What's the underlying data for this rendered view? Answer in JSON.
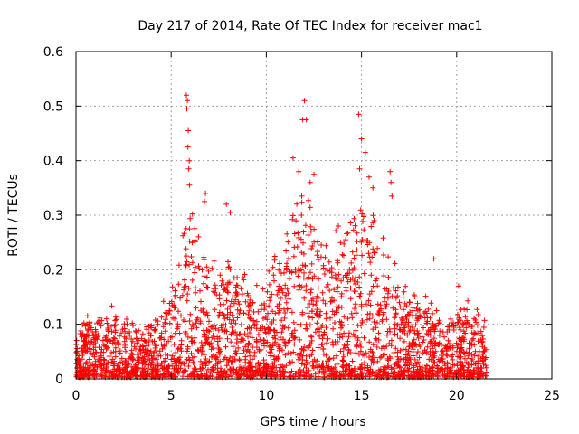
{
  "chart_data": {
    "type": "scatter",
    "title": "Day 217 of 2014, Rate Of TEC Index for receiver mac1",
    "xlabel": "GPS time / hours",
    "ylabel": "ROTI / TECUs",
    "xlim": [
      0,
      25
    ],
    "ylim": [
      0,
      0.6
    ],
    "xticks": [
      0,
      5,
      10,
      15,
      20,
      25
    ],
    "xtick_labels": [
      "0",
      "5",
      "10",
      "15",
      "20",
      "25"
    ],
    "yticks": [
      0,
      0.1,
      0.2,
      0.3,
      0.4,
      0.5,
      0.6
    ],
    "ytick_labels": [
      "0",
      "0.1",
      "0.2",
      "0.3",
      "0.4",
      "0.5",
      "0.6"
    ],
    "grid": true,
    "marker": "+",
    "color": "#ff0000",
    "x_range_observed": [
      0,
      21.6
    ],
    "envelope": {
      "hours": [
        0,
        0.5,
        1,
        1.5,
        2,
        2.5,
        3,
        3.5,
        4,
        4.5,
        5,
        5.5,
        5.8,
        6,
        6.5,
        7,
        7.5,
        8,
        8.5,
        9,
        9.5,
        10,
        10.5,
        11,
        11.5,
        12,
        12.5,
        13,
        13.5,
        14,
        14.5,
        15,
        15.5,
        16,
        16.5,
        17,
        17.5,
        18,
        18.5,
        19,
        19.5,
        20,
        20.5,
        21,
        21.6
      ],
      "upper_roti": [
        0.07,
        0.11,
        0.1,
        0.12,
        0.12,
        0.11,
        0.1,
        0.08,
        0.1,
        0.13,
        0.15,
        0.2,
        0.32,
        0.3,
        0.22,
        0.2,
        0.18,
        0.22,
        0.2,
        0.17,
        0.15,
        0.16,
        0.21,
        0.25,
        0.3,
        0.32,
        0.28,
        0.25,
        0.25,
        0.28,
        0.3,
        0.32,
        0.3,
        0.22,
        0.25,
        0.18,
        0.15,
        0.13,
        0.13,
        0.12,
        0.11,
        0.12,
        0.14,
        0.12,
        0.1
      ]
    },
    "peaks": [
      {
        "x": 5.8,
        "y": 0.52
      },
      {
        "x": 5.85,
        "y": 0.51
      },
      {
        "x": 5.82,
        "y": 0.495
      },
      {
        "x": 5.9,
        "y": 0.455
      },
      {
        "x": 5.88,
        "y": 0.425
      },
      {
        "x": 5.95,
        "y": 0.4
      },
      {
        "x": 5.92,
        "y": 0.385
      },
      {
        "x": 5.96,
        "y": 0.355
      },
      {
        "x": 6.8,
        "y": 0.34
      },
      {
        "x": 6.75,
        "y": 0.325
      },
      {
        "x": 7.9,
        "y": 0.32
      },
      {
        "x": 8.1,
        "y": 0.305
      },
      {
        "x": 11.4,
        "y": 0.405
      },
      {
        "x": 11.7,
        "y": 0.38
      },
      {
        "x": 11.9,
        "y": 0.475
      },
      {
        "x": 12.0,
        "y": 0.51
      },
      {
        "x": 12.1,
        "y": 0.475
      },
      {
        "x": 12.5,
        "y": 0.375
      },
      {
        "x": 12.3,
        "y": 0.36
      },
      {
        "x": 14.85,
        "y": 0.485
      },
      {
        "x": 15.0,
        "y": 0.44
      },
      {
        "x": 15.2,
        "y": 0.415
      },
      {
        "x": 14.9,
        "y": 0.385
      },
      {
        "x": 15.4,
        "y": 0.37
      },
      {
        "x": 15.6,
        "y": 0.35
      },
      {
        "x": 16.5,
        "y": 0.38
      },
      {
        "x": 16.55,
        "y": 0.36
      },
      {
        "x": 16.6,
        "y": 0.335
      },
      {
        "x": 18.8,
        "y": 0.22
      },
      {
        "x": 20.1,
        "y": 0.17
      }
    ]
  }
}
